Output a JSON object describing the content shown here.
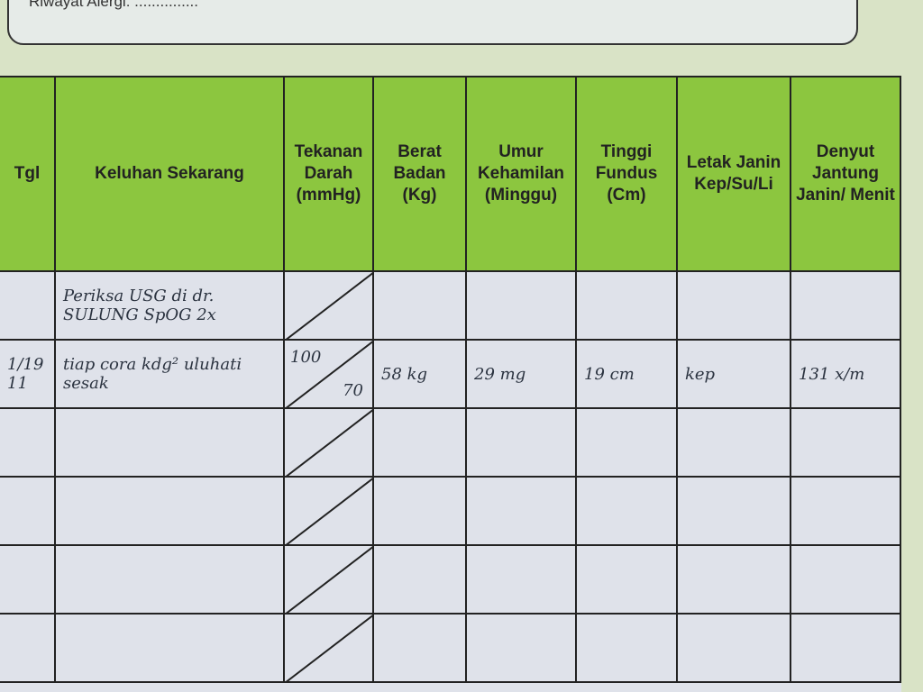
{
  "header": {
    "allergy": "Riwayat Alergi: ..............."
  },
  "table": {
    "headers": [
      "Tgl",
      "Keluhan Sekarang",
      "Tekanan Darah (mmHg)",
      "Berat Badan (Kg)",
      "Umur Kehamilan (Minggu)",
      "Tinggi Fundus (Cm)",
      "Letak Janin Kep/Su/Li",
      "Denyut Jantung Janin/ Menit"
    ],
    "rows": [
      [
        null,
        "Periksa USG di dr. SULUNG SpOG 2x",
        null,
        null,
        null,
        null,
        null,
        null
      ],
      [
        "1/19 11",
        "tiap cora kdg² uluhati sesak",
        {
          "systolic": "100",
          "diastolic": "70"
        },
        "58 kg",
        "29 mg",
        "19 cm",
        "kep",
        "131 x/m"
      ],
      [
        null,
        null,
        null,
        null,
        null,
        null,
        null,
        null
      ],
      [
        null,
        null,
        null,
        null,
        null,
        null,
        null,
        null
      ],
      [
        null,
        null,
        null,
        null,
        null,
        null,
        null,
        null
      ],
      [
        null,
        null,
        null,
        null,
        null,
        null,
        null,
        null
      ]
    ]
  }
}
